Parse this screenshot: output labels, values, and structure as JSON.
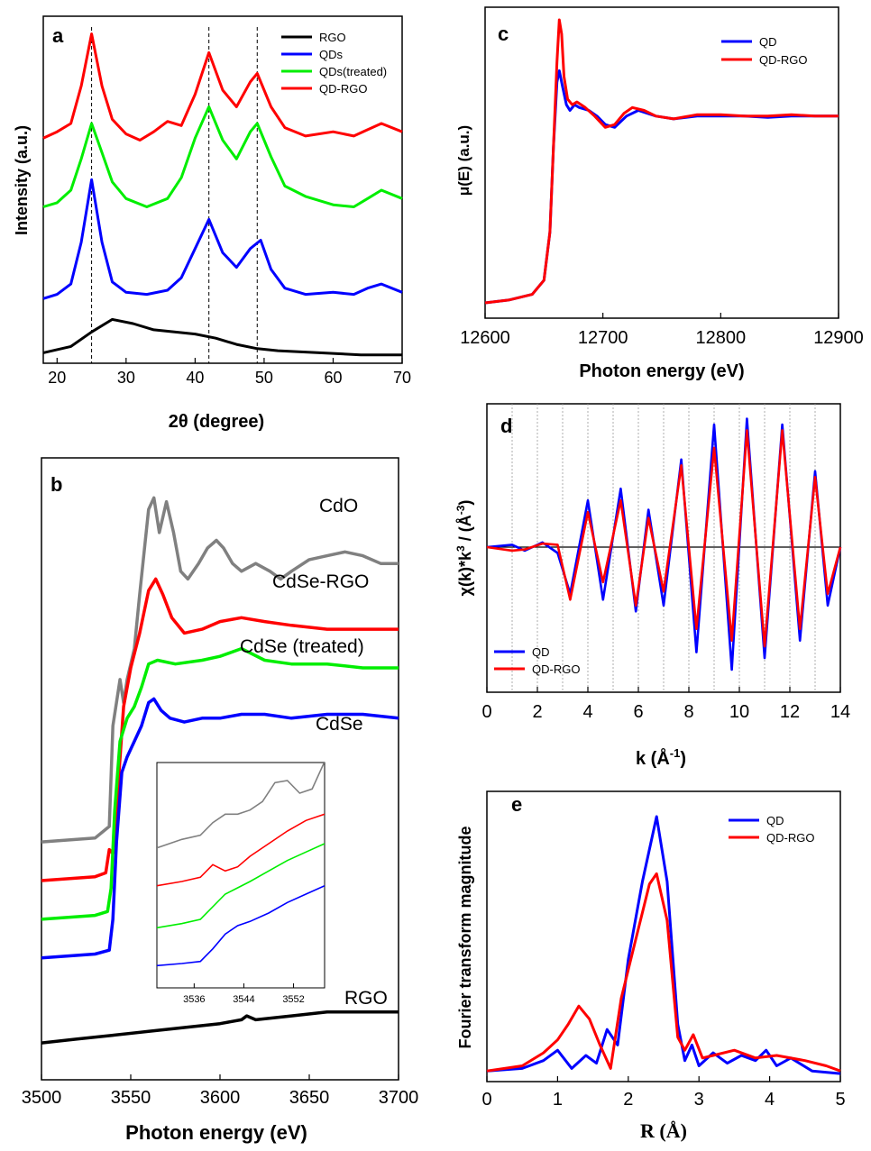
{
  "chart_data": [
    {
      "panel": "a",
      "type": "line",
      "xlabel": "2θ  (degree)",
      "ylabel": "Intensity (a.u.)",
      "xlim": [
        18,
        70
      ],
      "xticks": [
        "20",
        "30",
        "40",
        "50",
        "60",
        "70"
      ],
      "y_ticks": "none",
      "reference_lines_x": [
        25,
        42,
        49
      ],
      "legend_position": "top-right",
      "series": [
        {
          "name": "RGO",
          "color": "#000000",
          "x": [
            18,
            22,
            25,
            28,
            31,
            34,
            37,
            40,
            43,
            46,
            49,
            52,
            58,
            64,
            70
          ],
          "y": [
            0.02,
            0.05,
            0.12,
            0.18,
            0.16,
            0.13,
            0.12,
            0.11,
            0.09,
            0.06,
            0.04,
            0.03,
            0.02,
            0.01,
            0.01
          ]
        },
        {
          "name": "QDs",
          "color": "#0000ff",
          "x": [
            18,
            20,
            22,
            23.5,
            25,
            26.5,
            28,
            30,
            33,
            36,
            38,
            40,
            42,
            44,
            46,
            48,
            49.5,
            51,
            53,
            56,
            60,
            63,
            65,
            67,
            70
          ],
          "y": [
            0.28,
            0.3,
            0.35,
            0.55,
            0.85,
            0.55,
            0.36,
            0.31,
            0.3,
            0.32,
            0.38,
            0.52,
            0.66,
            0.5,
            0.43,
            0.52,
            0.56,
            0.42,
            0.33,
            0.3,
            0.31,
            0.3,
            0.33,
            0.35,
            0.31
          ]
        },
        {
          "name": "QDs(treated)",
          "color": "#00ee00",
          "x": [
            18,
            20,
            22,
            23.5,
            25,
            26.5,
            28,
            30,
            33,
            36,
            38,
            40,
            42,
            44,
            46,
            48,
            49,
            51,
            53,
            56,
            60,
            63,
            65,
            67,
            70
          ],
          "y": [
            0.72,
            0.74,
            0.8,
            0.95,
            1.12,
            0.98,
            0.84,
            0.76,
            0.72,
            0.76,
            0.86,
            1.05,
            1.2,
            1.04,
            0.95,
            1.08,
            1.12,
            0.96,
            0.82,
            0.77,
            0.73,
            0.72,
            0.76,
            0.8,
            0.76
          ]
        },
        {
          "name": "QD-RGO",
          "color": "#ff0000",
          "x": [
            18,
            20,
            22,
            23.5,
            25,
            26.5,
            28,
            30,
            32,
            34,
            36,
            38,
            40,
            42,
            44,
            46,
            48,
            49,
            51,
            53,
            56,
            60,
            63,
            65,
            67,
            70
          ],
          "y": [
            1.05,
            1.08,
            1.12,
            1.3,
            1.55,
            1.3,
            1.14,
            1.07,
            1.04,
            1.08,
            1.13,
            1.11,
            1.26,
            1.46,
            1.28,
            1.2,
            1.32,
            1.36,
            1.2,
            1.1,
            1.06,
            1.08,
            1.06,
            1.09,
            1.12,
            1.08
          ]
        }
      ]
    },
    {
      "panel": "b",
      "type": "line",
      "xlabel": "Photon energy  (eV)",
      "xlim": [
        3500,
        3700
      ],
      "xticks": [
        "3500",
        "3550",
        "3600",
        "3650",
        "3700"
      ],
      "y_ticks": "none",
      "curve_labels": [
        "CdO",
        "CdSe-RGO",
        "CdSe (treated)",
        "CdSe",
        "RGO"
      ],
      "series": [
        {
          "name": "CdO",
          "color": "#808080",
          "x": [
            3500,
            3530,
            3538,
            3540,
            3544,
            3546,
            3548,
            3552,
            3555,
            3560,
            3563,
            3566,
            3570,
            3574,
            3578,
            3582,
            3588,
            3593,
            3598,
            3602,
            3607,
            3612,
            3620,
            3628,
            3634,
            3640,
            3650,
            3660,
            3670,
            3680,
            3690,
            3700
          ],
          "y": [
            0.1,
            0.11,
            0.14,
            0.4,
            0.52,
            0.46,
            0.52,
            0.6,
            0.74,
            0.96,
            0.99,
            0.9,
            0.98,
            0.9,
            0.8,
            0.78,
            0.82,
            0.86,
            0.88,
            0.86,
            0.82,
            0.8,
            0.82,
            0.8,
            0.78,
            0.8,
            0.83,
            0.84,
            0.85,
            0.84,
            0.82,
            0.82
          ]
        },
        {
          "name": "CdSe-RGO",
          "color": "#ff0000",
          "x": [
            3500,
            3530,
            3536,
            3538,
            3540,
            3543,
            3546,
            3550,
            3555,
            3560,
            3564,
            3568,
            3573,
            3580,
            3590,
            3600,
            3612,
            3625,
            3640,
            3660,
            3680,
            3700
          ],
          "y": [
            0.0,
            0.01,
            0.02,
            0.08,
            0.07,
            0.25,
            0.45,
            0.55,
            0.64,
            0.75,
            0.78,
            0.74,
            0.68,
            0.64,
            0.65,
            0.67,
            0.68,
            0.67,
            0.66,
            0.65,
            0.65,
            0.65
          ]
        },
        {
          "name": "CdSe (treated)",
          "color": "#00ee00",
          "x": [
            3500,
            3530,
            3537,
            3539,
            3541,
            3544,
            3548,
            3552,
            3556,
            3560,
            3565,
            3575,
            3590,
            3600,
            3612,
            3625,
            3640,
            3660,
            3680,
            3700
          ],
          "y": [
            -0.1,
            -0.09,
            -0.08,
            -0.02,
            0.18,
            0.36,
            0.42,
            0.45,
            0.5,
            0.56,
            0.57,
            0.56,
            0.57,
            0.58,
            0.6,
            0.57,
            0.56,
            0.56,
            0.55,
            0.55
          ]
        },
        {
          "name": "CdSe",
          "color": "#0000ff",
          "x": [
            3500,
            3530,
            3538,
            3540,
            3542,
            3545,
            3548,
            3552,
            3556,
            3560,
            3563,
            3567,
            3572,
            3580,
            3590,
            3600,
            3612,
            3625,
            3640,
            3660,
            3680,
            3700
          ],
          "y": [
            -0.2,
            -0.19,
            -0.18,
            -0.1,
            0.1,
            0.28,
            0.32,
            0.36,
            0.4,
            0.46,
            0.47,
            0.44,
            0.42,
            0.41,
            0.42,
            0.42,
            0.43,
            0.43,
            0.42,
            0.43,
            0.43,
            0.42
          ]
        },
        {
          "name": "RGO",
          "color": "#000000",
          "x": [
            3500,
            3520,
            3540,
            3560,
            3580,
            3600,
            3612,
            3615,
            3620,
            3640,
            3660,
            3680,
            3700
          ],
          "y": [
            -0.42,
            -0.41,
            -0.4,
            -0.39,
            -0.38,
            -0.37,
            -0.36,
            -0.35,
            -0.36,
            -0.35,
            -0.34,
            -0.34,
            -0.34
          ]
        }
      ],
      "inset": {
        "xlim": [
          3530,
          3557
        ],
        "xticks": [
          "3536",
          "3544",
          "3552"
        ],
        "series": [
          {
            "name": "CdO",
            "color": "#808080",
            "x": [
              3530,
              3534,
              3537,
              3539,
              3541,
              3543,
              3545,
              3547,
              3549,
              3551,
              3553,
              3555,
              3557
            ],
            "y": [
              0.74,
              0.78,
              0.8,
              0.86,
              0.9,
              0.9,
              0.92,
              0.96,
              1.05,
              1.06,
              1.0,
              1.02,
              1.15
            ]
          },
          {
            "name": "CdSe-RGO",
            "color": "#ff0000",
            "x": [
              3530,
              3534,
              3537,
              3539,
              3541,
              3543,
              3545,
              3548,
              3551,
              3554,
              3557
            ],
            "y": [
              0.56,
              0.58,
              0.6,
              0.66,
              0.63,
              0.65,
              0.7,
              0.76,
              0.82,
              0.87,
              0.9
            ]
          },
          {
            "name": "CdSe (treated)",
            "color": "#00ee00",
            "x": [
              3530,
              3534,
              3537,
              3539,
              3541,
              3543,
              3545,
              3548,
              3551,
              3554,
              3557
            ],
            "y": [
              0.36,
              0.38,
              0.4,
              0.46,
              0.52,
              0.55,
              0.58,
              0.63,
              0.68,
              0.72,
              0.76
            ]
          },
          {
            "name": "CdSe",
            "color": "#0000ff",
            "x": [
              3530,
              3534,
              3537,
              3539,
              3541,
              3543,
              3545,
              3548,
              3551,
              3554,
              3557
            ],
            "y": [
              0.18,
              0.19,
              0.2,
              0.26,
              0.33,
              0.37,
              0.39,
              0.43,
              0.48,
              0.52,
              0.56
            ]
          }
        ]
      }
    },
    {
      "panel": "c",
      "type": "line",
      "xlabel": "Photon energy (eV)",
      "ylabel": "μ(E)  (a.u.)",
      "xlim": [
        12600,
        12900
      ],
      "xticks": [
        "12600",
        "12700",
        "12800",
        "12900"
      ],
      "y_ticks": "none",
      "legend_position": "top-right",
      "series": [
        {
          "name": "QD",
          "color": "#0000ff",
          "x": [
            12600,
            12620,
            12640,
            12650,
            12655,
            12658,
            12661,
            12663,
            12666,
            12669,
            12672,
            12676,
            12680,
            12688,
            12695,
            12702,
            12710,
            12720,
            12730,
            12745,
            12760,
            12780,
            12800,
            12820,
            12840,
            12860,
            12880,
            12900
          ],
          "y": [
            0.0,
            0.01,
            0.03,
            0.08,
            0.25,
            0.55,
            0.78,
            0.82,
            0.76,
            0.7,
            0.68,
            0.7,
            0.69,
            0.68,
            0.66,
            0.63,
            0.62,
            0.66,
            0.68,
            0.66,
            0.65,
            0.66,
            0.66,
            0.66,
            0.655,
            0.66,
            0.66,
            0.66
          ]
        },
        {
          "name": "QD-RGO",
          "color": "#ff0000",
          "x": [
            12600,
            12620,
            12640,
            12650,
            12655,
            12658,
            12661,
            12663,
            12665,
            12667,
            12670,
            12674,
            12678,
            12685,
            12693,
            12702,
            12710,
            12718,
            12725,
            12735,
            12745,
            12760,
            12780,
            12800,
            12820,
            12840,
            12860,
            12880,
            12900
          ],
          "y": [
            0.0,
            0.01,
            0.03,
            0.08,
            0.25,
            0.55,
            0.85,
            1.0,
            0.95,
            0.8,
            0.72,
            0.7,
            0.71,
            0.69,
            0.66,
            0.62,
            0.63,
            0.67,
            0.69,
            0.68,
            0.66,
            0.65,
            0.665,
            0.665,
            0.66,
            0.66,
            0.665,
            0.66,
            0.66
          ]
        }
      ]
    },
    {
      "panel": "d",
      "type": "line",
      "xlabel": "k  (Å-1)",
      "ylabel": "χ(k)*k3 / (Å-3)",
      "xlim": [
        0,
        14
      ],
      "xticks": [
        "0",
        "2",
        "4",
        "6",
        "8",
        "10",
        "12",
        "14"
      ],
      "y_ticks": "none",
      "grid": "vertical dotted at integer k",
      "legend_position": "bottom-left",
      "series": [
        {
          "name": "QD",
          "color": "#0000ff",
          "x": [
            0,
            1,
            1.5,
            2.2,
            2.8,
            3.3,
            4.0,
            4.6,
            5.3,
            5.9,
            6.4,
            7.0,
            7.7,
            8.3,
            9.0,
            9.7,
            10.3,
            11.0,
            11.7,
            12.4,
            13.0,
            13.5,
            14.0
          ],
          "y": [
            0,
            0.2,
            -0.3,
            0.4,
            -0.5,
            -4.0,
            4.0,
            -4.5,
            5.0,
            -5.5,
            3.2,
            -5.0,
            7.5,
            -9.0,
            10.5,
            -10.5,
            11.0,
            -9.5,
            10.5,
            -8.0,
            6.5,
            -5.0,
            0.0
          ]
        },
        {
          "name": "QD-RGO",
          "color": "#ff0000",
          "x": [
            0,
            1,
            1.5,
            2.2,
            2.8,
            3.3,
            4.0,
            4.6,
            5.3,
            5.9,
            6.4,
            7.0,
            7.7,
            8.3,
            9.0,
            9.7,
            10.3,
            11.0,
            11.7,
            12.4,
            13.0,
            13.5,
            14.0
          ],
          "y": [
            0,
            -0.3,
            -0.2,
            0.3,
            0.2,
            -4.5,
            3.0,
            -3.0,
            4.0,
            -5.0,
            2.5,
            -3.8,
            7.0,
            -7.0,
            8.5,
            -8.0,
            10.0,
            -8.5,
            10.0,
            -7.0,
            6.0,
            -4.0,
            0.0
          ]
        }
      ]
    },
    {
      "panel": "e",
      "type": "line",
      "xlabel": "R (Å)",
      "ylabel": "Fourier transform magnitude",
      "xlim": [
        0,
        5
      ],
      "xticks": [
        "0",
        "1",
        "2",
        "3",
        "4",
        "5"
      ],
      "y_ticks": "none",
      "legend_position": "top-right",
      "series": [
        {
          "name": "QD",
          "color": "#0000ff",
          "x": [
            0,
            0.5,
            0.8,
            1.0,
            1.2,
            1.4,
            1.55,
            1.7,
            1.85,
            2.0,
            2.2,
            2.4,
            2.55,
            2.7,
            2.8,
            2.9,
            3.0,
            3.2,
            3.4,
            3.6,
            3.8,
            3.95,
            4.1,
            4.3,
            4.6,
            5.0
          ],
          "y": [
            0.02,
            0.03,
            0.06,
            0.1,
            0.03,
            0.08,
            0.05,
            0.18,
            0.12,
            0.45,
            0.75,
            1.0,
            0.75,
            0.2,
            0.06,
            0.12,
            0.04,
            0.09,
            0.05,
            0.08,
            0.06,
            0.1,
            0.04,
            0.07,
            0.02,
            0.01
          ]
        },
        {
          "name": "QD-RGO",
          "color": "#ff0000",
          "x": [
            0,
            0.5,
            0.8,
            1.0,
            1.15,
            1.3,
            1.45,
            1.6,
            1.75,
            1.9,
            2.1,
            2.3,
            2.4,
            2.55,
            2.7,
            2.8,
            2.92,
            3.05,
            3.2,
            3.5,
            3.8,
            4.1,
            4.5,
            4.8,
            5.0
          ],
          "y": [
            0.02,
            0.04,
            0.09,
            0.14,
            0.2,
            0.27,
            0.22,
            0.12,
            0.03,
            0.3,
            0.52,
            0.74,
            0.78,
            0.6,
            0.15,
            0.1,
            0.16,
            0.07,
            0.08,
            0.1,
            0.07,
            0.08,
            0.06,
            0.04,
            0.02
          ]
        }
      ]
    }
  ],
  "panels": {
    "a": {
      "letter": "a"
    },
    "b": {
      "letter": "b"
    },
    "c": {
      "letter": "c"
    },
    "d": {
      "letter": "d"
    },
    "e": {
      "letter": "e"
    }
  }
}
